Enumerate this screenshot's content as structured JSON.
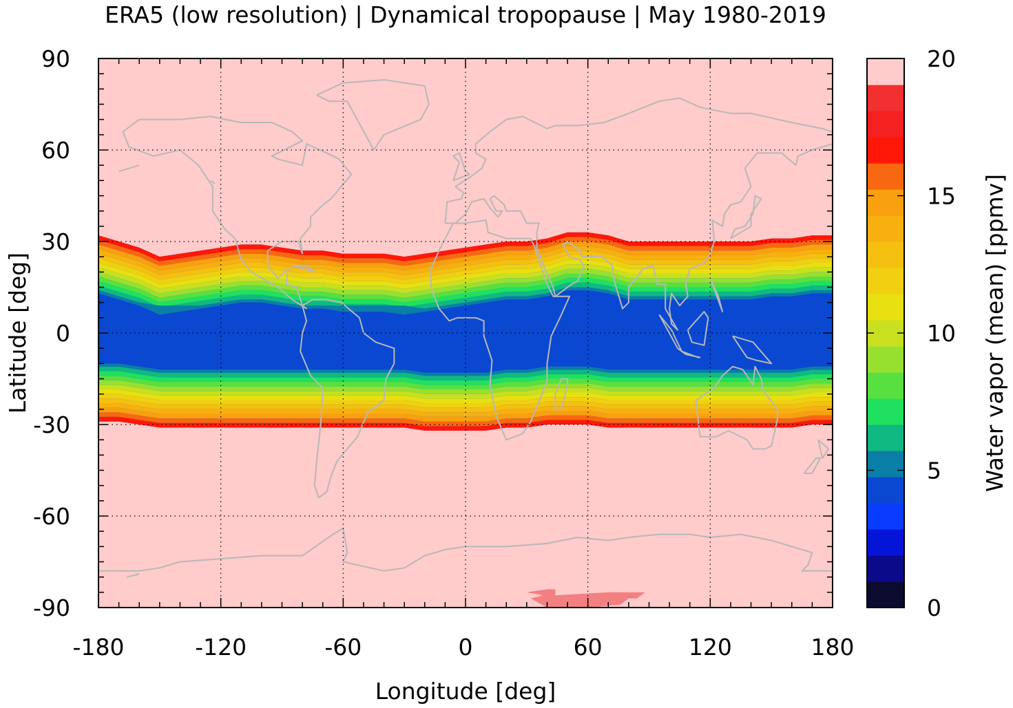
{
  "chart_data": {
    "type": "heatmap",
    "title": "ERA5 (low resolution) | Dynamical tropopause | May 1980-2019",
    "xlabel": "Longitude [deg]",
    "ylabel": "Latitude [deg]",
    "xlim": [
      -180,
      180
    ],
    "ylim": [
      -90,
      90
    ],
    "x_ticks": [
      -180,
      -120,
      -60,
      0,
      60,
      120,
      180
    ],
    "x_tick_labels": [
      "-180",
      "-120",
      "-60",
      "0",
      "60",
      "120",
      "180"
    ],
    "y_ticks": [
      90,
      60,
      30,
      0,
      -30,
      -60,
      -90
    ],
    "y_tick_labels": [
      "90",
      "60",
      "30",
      "0",
      "-30",
      "-60",
      "-90"
    ],
    "grid": "dotted",
    "colorbar": {
      "label": "Water vapor (mean) [ppmv]",
      "range": [
        0,
        20
      ],
      "ticks": [
        0,
        5,
        10,
        15,
        20
      ],
      "tick_labels": [
        "0",
        "5",
        "10",
        "15",
        "20"
      ],
      "colors": [
        "#0b0b30",
        "#0a0a8a",
        "#0515d8",
        "#0a3cff",
        "#0a48d2",
        "#0a7ea6",
        "#10b882",
        "#20e060",
        "#58e040",
        "#98e030",
        "#c8e020",
        "#e8e010",
        "#f0d010",
        "#f5c010",
        "#f8b010",
        "#f8a010",
        "#f86810",
        "#ff1808",
        "#f52020",
        "#f23030",
        "#f27575",
        "#ffcbcb"
      ]
    },
    "overlay": "coastlines",
    "note_colors": {
      "background": "#ffcbcb",
      "coastline": "#b8b8b8",
      "antarctic_patch": "#f38080"
    },
    "series": [
      {
        "lon": [
          -180,
          -170,
          -160,
          -150,
          -140,
          -130,
          -120,
          -110,
          -100,
          -90,
          -80,
          -70,
          -60,
          -50,
          -40,
          -30,
          -20,
          -10,
          0,
          10,
          20,
          30,
          40,
          50,
          60,
          70,
          80,
          90,
          100,
          110,
          120,
          130,
          140,
          150,
          160,
          170,
          180
        ],
        "north_edge_lat": [
          32,
          30,
          28,
          25,
          26,
          27,
          28,
          29,
          29,
          28,
          27,
          27,
          26,
          26,
          26,
          25,
          26,
          27,
          28,
          29,
          30,
          30,
          31,
          33,
          33,
          32,
          30,
          30,
          30,
          30,
          30,
          30,
          30,
          31,
          31,
          32,
          32
        ],
        "south_edge_lat": [
          -29,
          -29,
          -30,
          -31,
          -31,
          -31,
          -31,
          -31,
          -31,
          -31,
          -31,
          -31,
          -31,
          -31,
          -31,
          -31,
          -32,
          -32,
          -32,
          -32,
          -31,
          -31,
          -30,
          -30,
          -30,
          -31,
          -31,
          -31,
          -31,
          -31,
          -31,
          -31,
          -31,
          -31,
          -31,
          -30,
          -30
        ]
      }
    ]
  }
}
